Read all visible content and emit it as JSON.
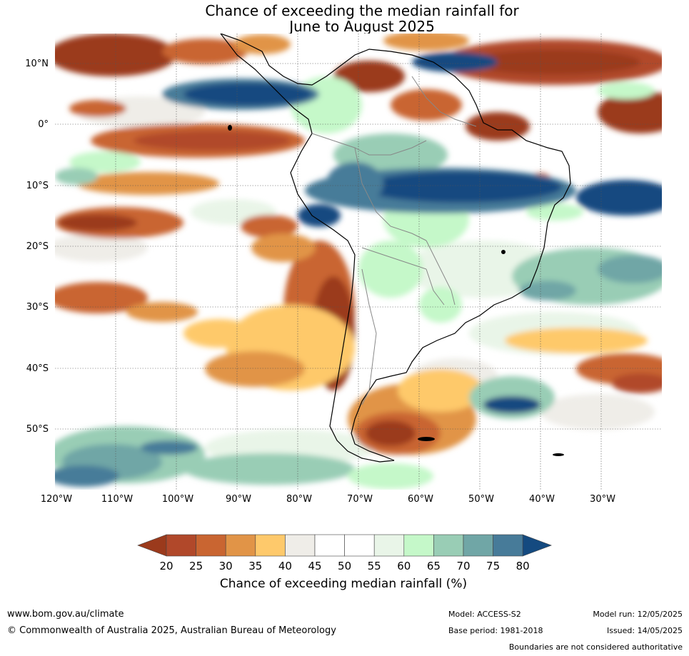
{
  "title": {
    "line1": "Chance of exceeding the median rainfall for",
    "line2": "June to August 2025"
  },
  "map": {
    "lat_labels": [
      "10°N",
      "0°",
      "10°S",
      "20°S",
      "30°S",
      "40°S",
      "50°S"
    ],
    "lon_labels": [
      "120°W",
      "110°W",
      "100°W",
      "90°W",
      "80°W",
      "70°W",
      "60°W",
      "50°W",
      "40°W",
      "30°W"
    ]
  },
  "colorbar": {
    "label": "Chance of exceeding median rainfall (%)",
    "ticks": [
      "20",
      "25",
      "30",
      "35",
      "40",
      "45",
      "50",
      "55",
      "60",
      "65",
      "70",
      "75",
      "80"
    ],
    "colors": [
      "#9b3a1c",
      "#b1482a",
      "#c96531",
      "#e19447",
      "#fec96b",
      "#efede8",
      "#ffffff",
      "#ffffff",
      "#e9f5e8",
      "#c5f8c9",
      "#99cdb5",
      "#70a6a6",
      "#477b99",
      "#144a80"
    ]
  },
  "footer": {
    "url": "www.bom.gov.au/climate",
    "copyright": "© Commonwealth of Australia 2025, Australian Bureau of Meteorology",
    "model": "Model: ACCESS-S2",
    "base_period": "Base period: 1981-2018",
    "model_run": "Model run: 12/05/2025",
    "issued": "Issued: 14/05/2025",
    "disclaimer": "Boundaries are not considered authoritative"
  }
}
